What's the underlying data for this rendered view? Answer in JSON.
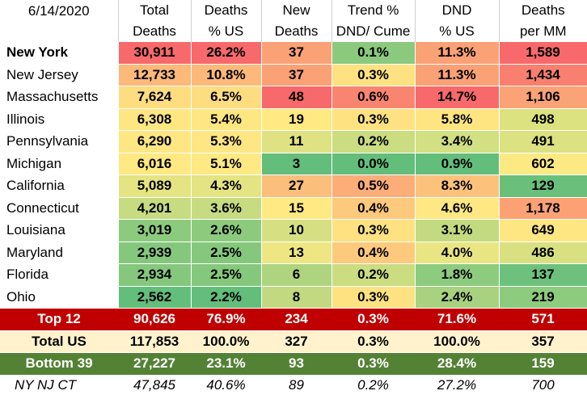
{
  "header": {
    "date": "6/14/2020",
    "col1": [
      "Total",
      "Deaths"
    ],
    "col2": [
      "Deaths",
      "% US"
    ],
    "col3": [
      "New",
      "Deaths"
    ],
    "col4": [
      "Trend %",
      "DND/ Cume"
    ],
    "col5": [
      "DND",
      "% US"
    ],
    "col6": [
      "Deaths",
      "per MM"
    ]
  },
  "rows": [
    {
      "state": "New York",
      "bold": true,
      "total": "30,911",
      "pct": "26.2%",
      "new": "37",
      "trend": "0.1%",
      "dnd": "11.3%",
      "permm": "1,589",
      "c": [
        "#f8696b",
        "#f8696b",
        "#fba176",
        "#8bc97e",
        "#fba176",
        "#f8696b"
      ]
    },
    {
      "state": "New Jersey",
      "total": "12,733",
      "pct": "10.8%",
      "new": "37",
      "trend": "0.3%",
      "dnd": "11.3%",
      "permm": "1,434",
      "c": [
        "#fcb97a",
        "#fcb97a",
        "#fba176",
        "#fee282",
        "#fba176",
        "#f97f6f"
      ]
    },
    {
      "state": "Massachusetts",
      "total": "7,624",
      "pct": "6.5%",
      "new": "48",
      "trend": "0.6%",
      "dnd": "14.7%",
      "permm": "1,106",
      "c": [
        "#fedd81",
        "#fedd81",
        "#f8696b",
        "#f98570",
        "#f8696b",
        "#fba276"
      ]
    },
    {
      "state": "Illinois",
      "total": "6,308",
      "pct": "5.4%",
      "new": "19",
      "trend": "0.3%",
      "dnd": "5.8%",
      "permm": "498",
      "c": [
        "#fee783",
        "#fee783",
        "#fee983",
        "#fee282",
        "#fee582",
        "#dde281"
      ]
    },
    {
      "state": "Pennsylvania",
      "total": "6,290",
      "pct": "5.3%",
      "new": "11",
      "trend": "0.2%",
      "dnd": "3.4%",
      "permm": "491",
      "c": [
        "#fee783",
        "#fee783",
        "#dfe283",
        "#cbdc81",
        "#d2df82",
        "#dce181"
      ]
    },
    {
      "state": "Michigan",
      "total": "6,016",
      "pct": "5.1%",
      "new": "3",
      "trend": "0.0%",
      "dnd": "0.9%",
      "permm": "602",
      "c": [
        "#fee983",
        "#fee983",
        "#63be7b",
        "#63be7b",
        "#63be7b",
        "#fbe983"
      ]
    },
    {
      "state": "California",
      "total": "5,089",
      "pct": "4.3%",
      "new": "27",
      "trend": "0.5%",
      "dnd": "8.3%",
      "permm": "129",
      "c": [
        "#e4e483",
        "#e4e483",
        "#fcbe7b",
        "#fcad78",
        "#fcc27c",
        "#6ac07b"
      ]
    },
    {
      "state": "Connecticut",
      "total": "4,201",
      "pct": "3.6%",
      "new": "15",
      "trend": "0.4%",
      "dnd": "4.6%",
      "permm": "1,178",
      "c": [
        "#c7db81",
        "#c7db81",
        "#fee983",
        "#fdc97d",
        "#fee883",
        "#fba174"
      ]
    },
    {
      "state": "Louisiana",
      "total": "3,019",
      "pct": "2.6%",
      "new": "10",
      "trend": "0.3%",
      "dnd": "3.1%",
      "permm": "649",
      "c": [
        "#8ccb7e",
        "#8ccb7e",
        "#d6e082",
        "#fee282",
        "#c4da81",
        "#fee783"
      ]
    },
    {
      "state": "Maryland",
      "total": "2,939",
      "pct": "2.5%",
      "new": "13",
      "trend": "0.4%",
      "dnd": "4.0%",
      "permm": "486",
      "c": [
        "#85c87d",
        "#85c87d",
        "#eee683",
        "#fdc97d",
        "#eae583",
        "#d9e082"
      ]
    },
    {
      "state": "Florida",
      "total": "2,934",
      "pct": "2.5%",
      "new": "6",
      "trend": "0.2%",
      "dnd": "1.8%",
      "permm": "137",
      "c": [
        "#85c87d",
        "#85c87d",
        "#aed480",
        "#cbdc81",
        "#8dcb7e",
        "#6ec17c"
      ]
    },
    {
      "state": "Ohio",
      "total": "2,562",
      "pct": "2.2%",
      "new": "8",
      "trend": "0.3%",
      "dnd": "2.4%",
      "permm": "219",
      "c": [
        "#63be7b",
        "#63be7b",
        "#c2d981",
        "#fee282",
        "#a8d27f",
        "#8dcb7e"
      ]
    }
  ],
  "summary": [
    {
      "label": "Top 12",
      "total": "90,626",
      "pct": "76.9%",
      "new": "234",
      "trend": "0.3%",
      "dnd": "71.6%",
      "permm": "571",
      "bg": "#c00000",
      "fg": "#ffffff"
    },
    {
      "label": "Total US",
      "total": "117,853",
      "pct": "100.0%",
      "new": "327",
      "trend": "0.3%",
      "dnd": "100.0%",
      "permm": "357",
      "bg": "#fff2cc",
      "fg": "#000000"
    },
    {
      "label": "Bottom 39",
      "total": "27,227",
      "pct": "23.1%",
      "new": "93",
      "trend": "0.3%",
      "dnd": "28.4%",
      "permm": "159",
      "bg": "#548235",
      "fg": "#ffffff"
    }
  ],
  "footer": {
    "label": "NY NJ CT",
    "total": "47,845",
    "pct": "40.6%",
    "new": "89",
    "trend": "0.2%",
    "dnd": "27.2%",
    "permm": "700"
  }
}
